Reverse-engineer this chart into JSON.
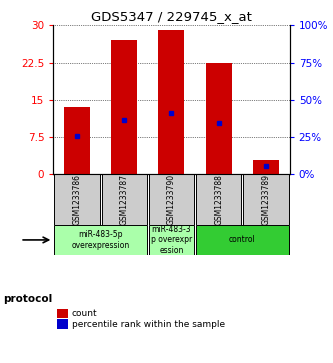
{
  "title": "GDS5347 / 229745_x_at",
  "samples": [
    "GSM1233786",
    "GSM1233787",
    "GSM1233790",
    "GSM1233788",
    "GSM1233789"
  ],
  "count_values": [
    13.5,
    27.0,
    29.0,
    22.5,
    2.8
  ],
  "percentile_values": [
    25.5,
    36.0,
    41.0,
    34.0,
    5.5
  ],
  "bar_color": "#cc0000",
  "dot_color": "#0000cc",
  "ylim_left": [
    0,
    30
  ],
  "ylim_right": [
    0,
    100
  ],
  "yticks_left": [
    0,
    7.5,
    15,
    22.5,
    30
  ],
  "yticks_right": [
    0,
    25,
    50,
    75,
    100
  ],
  "ytick_labels_left": [
    "0",
    "7.5",
    "15",
    "22.5",
    "30"
  ],
  "ytick_labels_right": [
    "0%",
    "25%",
    "50%",
    "75%",
    "100%"
  ],
  "groups": [
    {
      "label": "miR-483-5p\noverexpression",
      "samples": [
        0,
        1
      ],
      "color": "#aaffaa"
    },
    {
      "label": "miR-483-3\np overexpr\nession",
      "samples": [
        2
      ],
      "color": "#aaffaa"
    },
    {
      "label": "control",
      "samples": [
        3,
        4
      ],
      "color": "#33cc33"
    }
  ],
  "protocol_label": "protocol",
  "legend_count_label": "count",
  "legend_percentile_label": "percentile rank within the sample",
  "background_color": "#ffffff",
  "plot_bg_color": "#ffffff",
  "sample_box_color": "#cccccc"
}
